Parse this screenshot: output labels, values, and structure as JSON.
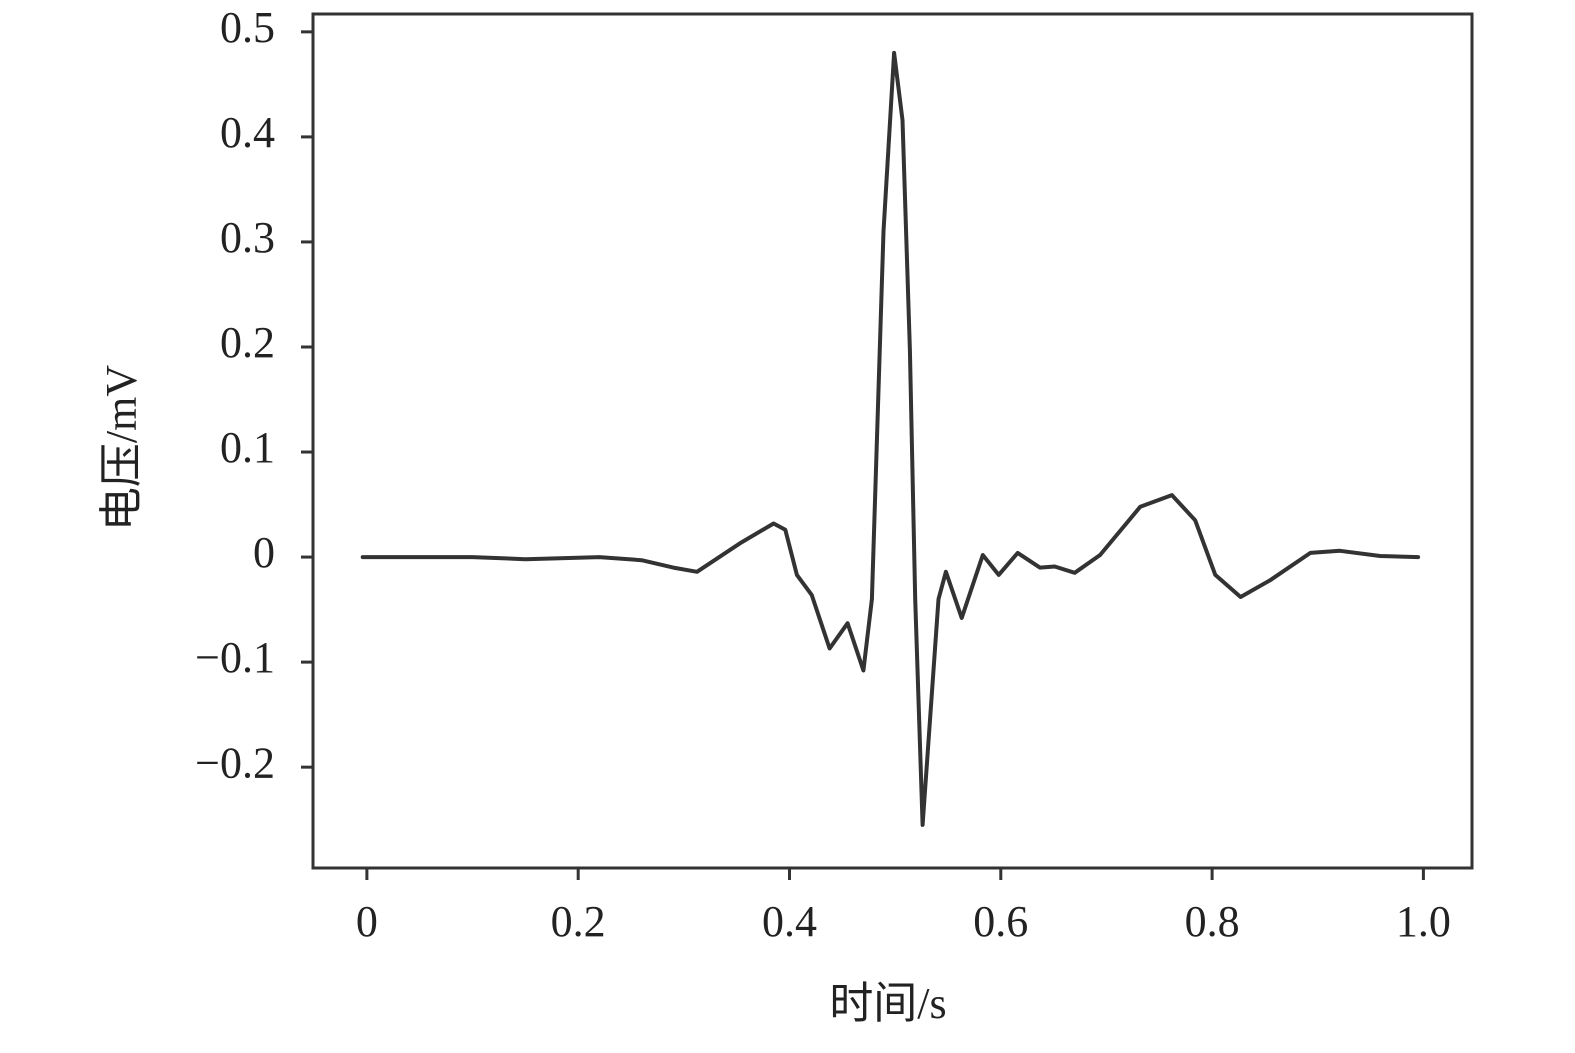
{
  "chart_data": {
    "type": "line",
    "x_label": "时间/s",
    "y_label": "电压/mV",
    "x": [
      -0.004,
      0.0,
      0.1,
      0.15,
      0.22,
      0.26,
      0.29,
      0.3125,
      0.353,
      0.385,
      0.396,
      0.407,
      0.421,
      0.438,
      0.455,
      0.47,
      0.478,
      0.489,
      0.499,
      0.507,
      0.514,
      0.519,
      0.526,
      0.533,
      0.541,
      0.548,
      0.563,
      0.583,
      0.598,
      0.616,
      0.637,
      0.651,
      0.67,
      0.694,
      0.732,
      0.762,
      0.784,
      0.803,
      0.827,
      0.855,
      0.893,
      0.921,
      0.959,
      0.995
    ],
    "series": [
      {
        "color": "#333333",
        "values": [
          0,
          0,
          0,
          -0.002,
          0,
          -0.003,
          -0.01,
          -0.014,
          0.013,
          0.032,
          0.026,
          -0.017,
          -0.036,
          -0.087,
          -0.063,
          -0.108,
          -0.04,
          0.31,
          0.48,
          0.416,
          0.197,
          -0.04,
          -0.255,
          -0.155,
          -0.04,
          -0.014,
          -0.058,
          0.002,
          -0.017,
          0.004,
          -0.01,
          -0.009,
          -0.015,
          0.002,
          0.048,
          0.059,
          0.035,
          -0.017,
          -0.038,
          -0.022,
          0.004,
          0.006,
          0.001,
          0
        ]
      }
    ],
    "xlim": [
      -0.051,
      1.046
    ],
    "ylim": [
      -0.296,
      0.517
    ],
    "xticks": [
      0,
      0.2,
      0.4,
      0.6,
      0.8,
      {
        "value": 1,
        "label": "1.0"
      }
    ],
    "yticks": [
      {
        "value": -0.2,
        "label": "−0.2"
      },
      {
        "value": -0.1,
        "label": "−0.1"
      },
      0,
      0.1,
      0.2,
      0.3,
      0.4,
      0.5
    ]
  }
}
